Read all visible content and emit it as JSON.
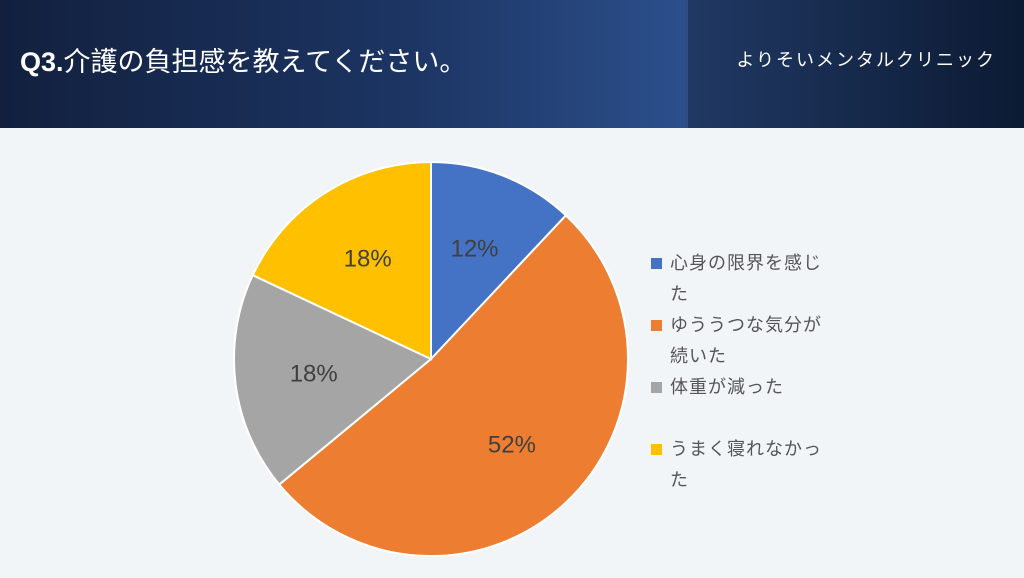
{
  "header": {
    "question_number": "Q3.",
    "question_text": "介護の負担感を教えてください。",
    "clinic_name": "よりそいメンタルクリニック"
  },
  "chart_data": {
    "type": "pie",
    "title": "",
    "start_angle_deg": 0,
    "direction": "clockwise",
    "slices": [
      {
        "label": "心身の限界を感じた",
        "value": 12,
        "display": "12%",
        "color": "#4472c4"
      },
      {
        "label": "ゆううつな気分が続いた",
        "value": 52,
        "display": "52%",
        "color": "#ed7d31"
      },
      {
        "label": "体重が減った",
        "value": 18,
        "display": "18%",
        "color": "#a5a5a5"
      },
      {
        "label": "うまく寝れなかった",
        "value": 18,
        "display": "18%",
        "color": "#ffc000"
      }
    ],
    "legend_position": "right"
  }
}
